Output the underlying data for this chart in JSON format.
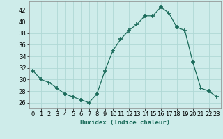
{
  "x": [
    0,
    1,
    2,
    3,
    4,
    5,
    6,
    7,
    8,
    9,
    10,
    11,
    12,
    13,
    14,
    15,
    16,
    17,
    18,
    19,
    20,
    21,
    22,
    23
  ],
  "y": [
    31.5,
    30.0,
    29.5,
    28.5,
    27.5,
    27.0,
    26.5,
    26.0,
    27.5,
    31.5,
    35.0,
    37.0,
    38.5,
    39.5,
    41.0,
    41.0,
    42.5,
    41.5,
    39.0,
    38.5,
    33.0,
    28.5,
    28.0,
    27.0
  ],
  "line_color": "#1a6b5a",
  "marker": "+",
  "marker_size": 4,
  "bg_color": "#ceecea",
  "grid_color": "#b0d8d5",
  "xlabel": "Humidex (Indice chaleur)",
  "ylim": [
    25,
    43.5
  ],
  "xlim": [
    -0.5,
    23.5
  ],
  "yticks": [
    26,
    28,
    30,
    32,
    34,
    36,
    38,
    40,
    42
  ],
  "xticks": [
    0,
    1,
    2,
    3,
    4,
    5,
    6,
    7,
    8,
    9,
    10,
    11,
    12,
    13,
    14,
    15,
    16,
    17,
    18,
    19,
    20,
    21,
    22,
    23
  ],
  "label_fontsize": 6.5,
  "tick_fontsize": 6
}
